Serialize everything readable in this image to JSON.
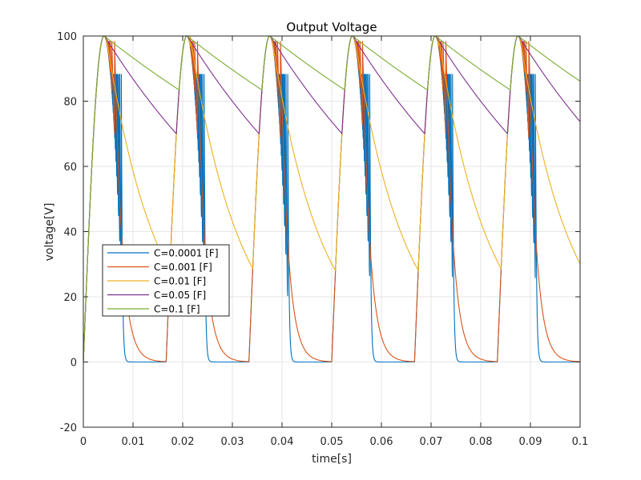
{
  "chart_data": {
    "type": "line",
    "title": "Output Voltage",
    "xlabel": "time[s]",
    "ylabel": "voltage[V]",
    "xlim": [
      0,
      0.1
    ],
    "ylim": [
      -20,
      100
    ],
    "xticks": [
      0,
      0.01,
      0.02,
      0.03,
      0.04,
      0.05,
      0.06,
      0.07,
      0.08,
      0.09,
      0.1
    ],
    "xtick_labels": [
      "0",
      "0.01",
      "0.02",
      "0.03",
      "0.04",
      "0.05",
      "0.06",
      "0.07",
      "0.08",
      "0.09",
      "0.1"
    ],
    "yticks": [
      -20,
      0,
      20,
      40,
      60,
      80,
      100
    ],
    "ytick_labels": [
      "-20",
      "0",
      "20",
      "40",
      "60",
      "80",
      "100"
    ],
    "grid": true,
    "legend_location": "center-left",
    "signal": {
      "peak": 100,
      "period": 0.016667,
      "peak_time": 0.0041667,
      "cutoff_phase": 0.5
    },
    "series": [
      {
        "name": "C=0.0001 [F]",
        "color": "#0072BD",
        "C": 0.0001,
        "tau": 0.0002
      },
      {
        "name": "C=0.001 [F]",
        "color": "#D95319",
        "C": 0.001,
        "tau": 0.0015
      },
      {
        "name": "C=0.01 [F]",
        "color": "#EDB120",
        "C": 0.01,
        "tau": 0.0101
      },
      {
        "name": "C=0.05 [F]",
        "color": "#7E2F8E",
        "C": 0.05,
        "tau": 0.0405
      },
      {
        "name": "C=0.1 [F]",
        "color": "#77AC30",
        "C": 0.1,
        "tau": 0.0832
      }
    ]
  }
}
